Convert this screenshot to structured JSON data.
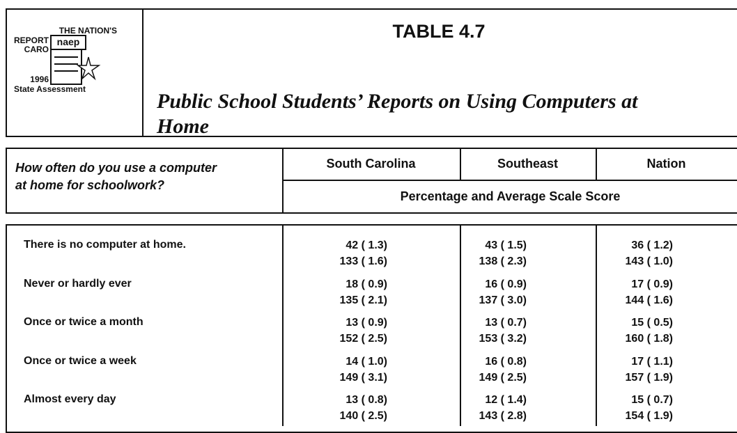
{
  "logo": {
    "line1": "THE NATION'S",
    "line2": "REPORT",
    "line3": "CARO",
    "mark": "naep",
    "year": "1996",
    "caption": "State Assessment"
  },
  "header": {
    "title": "TABLE 4.7",
    "subtitle_line1": "Public School Students’ Reports on Using Computers at",
    "subtitle_line2": "Home"
  },
  "table": {
    "question_line1": "How often do you use a computer",
    "question_line2": "at home for schoolwork?",
    "columns": [
      "South Carolina",
      "Southeast",
      "Nation"
    ],
    "subheader": "Percentage and Average Scale Score",
    "rows": [
      {
        "label": "There is no computer at home.",
        "cells": [
          [
            "42 ( 1.3)",
            "133 ( 1.6)"
          ],
          [
            "43 ( 1.5)",
            "138 ( 2.3)"
          ],
          [
            "36 ( 1.2)",
            "143 ( 1.0)"
          ]
        ]
      },
      {
        "label": "Never or hardly ever",
        "cells": [
          [
            "18 ( 0.9)",
            "135 ( 2.1)"
          ],
          [
            "16 ( 0.9)",
            "137 ( 3.0)"
          ],
          [
            "17 ( 0.9)",
            "144 ( 1.6)"
          ]
        ]
      },
      {
        "label": "Once or twice a month",
        "cells": [
          [
            "13 ( 0.9)",
            "152 ( 2.5)"
          ],
          [
            "13 ( 0.7)",
            "153 ( 3.2)"
          ],
          [
            "15 ( 0.5)",
            "160 ( 1.8)"
          ]
        ]
      },
      {
        "label": "Once or twice a week",
        "cells": [
          [
            "14 ( 1.0)",
            "149 ( 3.1)"
          ],
          [
            "16 ( 0.8)",
            "149 ( 2.5)"
          ],
          [
            "17 ( 1.1)",
            "157 ( 1.9)"
          ]
        ]
      },
      {
        "label": "Almost every day",
        "cells": [
          [
            "13 ( 0.8)",
            "140 ( 2.5)"
          ],
          [
            "12 ( 1.4)",
            "143 ( 2.8)"
          ],
          [
            "15 ( 0.7)",
            "154 ( 1.9)"
          ]
        ]
      }
    ]
  }
}
